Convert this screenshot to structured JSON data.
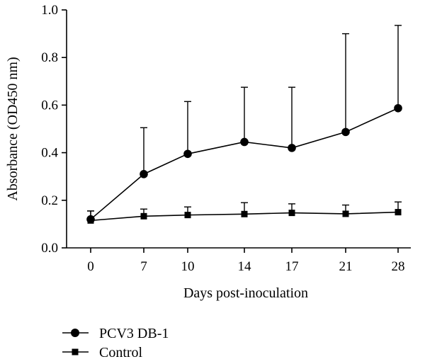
{
  "chart_data": {
    "type": "line",
    "title": "",
    "xlabel": "Days post-inoculation",
    "ylabel": "Absorbance (OD450 nm)",
    "categories": [
      "0",
      "7",
      "10",
      "14",
      "17",
      "21",
      "28"
    ],
    "ylim": [
      0,
      1.0
    ],
    "yticks": [
      "0.0",
      "0.2",
      "0.4",
      "0.6",
      "0.8",
      "1.0"
    ],
    "grid": false,
    "legend_position": "bottom-left",
    "series": [
      {
        "name": "PCV3 DB-1",
        "marker": "circle",
        "color": "#000000",
        "values": [
          0.12,
          0.31,
          0.395,
          0.445,
          0.42,
          0.487,
          0.587
        ],
        "error_upper": [
          0.155,
          0.505,
          0.615,
          0.675,
          0.675,
          0.9,
          0.935
        ]
      },
      {
        "name": "Control",
        "marker": "square",
        "color": "#000000",
        "values": [
          0.115,
          0.133,
          0.138,
          0.142,
          0.147,
          0.143,
          0.15
        ],
        "error_upper": [
          0.155,
          0.163,
          0.172,
          0.19,
          0.185,
          0.18,
          0.193
        ]
      }
    ]
  }
}
